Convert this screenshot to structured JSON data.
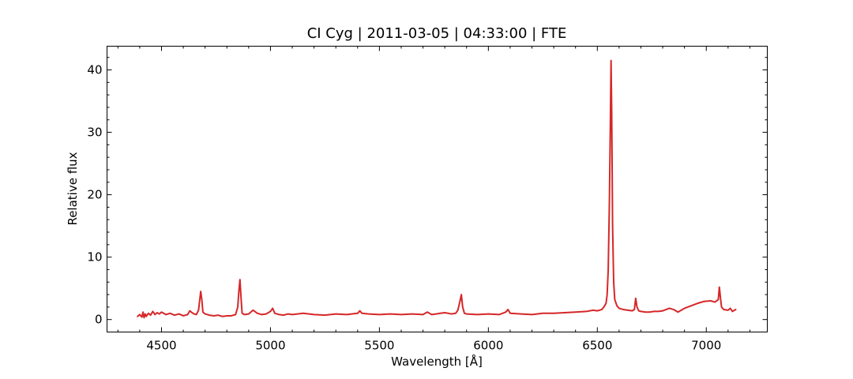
{
  "chart_data": {
    "type": "line",
    "title": "CI Cyg | 2011-03-05 | 04:33:00 | FTE",
    "xlabel": "Wavelength [Å]",
    "ylabel": "Relative flux",
    "xlim": [
      4250,
      7280
    ],
    "ylim": [
      -2,
      43.8
    ],
    "x_ticks": [
      4500,
      5000,
      5500,
      6000,
      6500,
      7000
    ],
    "y_ticks": [
      0,
      10,
      20,
      30,
      40
    ],
    "grid": false,
    "series_color": "#d62728",
    "series": [
      {
        "x": [
          4390,
          4400,
          4410,
          4415,
          4420,
          4425,
          4430,
          4440,
          4450,
          4460,
          4470,
          4480,
          4490,
          4500,
          4520,
          4540,
          4560,
          4580,
          4600,
          4620,
          4630,
          4640,
          4650,
          4660,
          4670,
          4675,
          4680,
          4685,
          4690,
          4700,
          4720,
          4740,
          4760,
          4780,
          4800,
          4820,
          4840,
          4850,
          4855,
          4860,
          4865,
          4870,
          4880,
          4900,
          4920,
          4940,
          4960,
          4980,
          5000,
          5010,
          5020,
          5040,
          5060,
          5080,
          5100,
          5150,
          5200,
          5250,
          5300,
          5350,
          5400,
          5410,
          5420,
          5450,
          5500,
          5550,
          5600,
          5650,
          5700,
          5720,
          5740,
          5760,
          5780,
          5800,
          5830,
          5850,
          5860,
          5870,
          5876,
          5882,
          5890,
          5900,
          5950,
          6000,
          6050,
          6080,
          6090,
          6100,
          6150,
          6200,
          6250,
          6300,
          6350,
          6400,
          6450,
          6480,
          6500,
          6520,
          6530,
          6540,
          6545,
          6550,
          6555,
          6560,
          6563,
          6566,
          6570,
          6575,
          6580,
          6590,
          6600,
          6620,
          6640,
          6660,
          6670,
          6676,
          6682,
          6690,
          6700,
          6720,
          6740,
          6760,
          6780,
          6800,
          6830,
          6850,
          6870,
          6900,
          6930,
          6960,
          6990,
          7020,
          7040,
          7055,
          7060,
          7065,
          7070,
          7080,
          7100,
          7110,
          7120,
          7135
        ],
        "y": [
          0.5,
          0.8,
          0.4,
          1.2,
          0.3,
          0.9,
          0.5,
          1.0,
          0.7,
          1.3,
          0.8,
          1.1,
          0.9,
          1.2,
          0.8,
          1.0,
          0.7,
          0.9,
          0.6,
          0.8,
          1.4,
          1.1,
          0.9,
          0.8,
          1.5,
          3.0,
          4.5,
          3.2,
          1.2,
          0.9,
          0.7,
          0.6,
          0.7,
          0.5,
          0.6,
          0.6,
          0.8,
          2.0,
          4.5,
          6.4,
          3.5,
          1.0,
          0.8,
          0.9,
          1.5,
          1.0,
          0.8,
          0.9,
          1.3,
          1.8,
          1.0,
          0.8,
          0.7,
          0.9,
          0.8,
          1.0,
          0.8,
          0.7,
          0.9,
          0.8,
          1.0,
          1.4,
          1.0,
          0.9,
          0.8,
          0.9,
          0.8,
          0.9,
          0.8,
          1.2,
          0.8,
          0.9,
          1.0,
          1.1,
          0.9,
          1.0,
          1.5,
          3.0,
          4.0,
          2.0,
          1.0,
          0.9,
          0.8,
          0.9,
          0.8,
          1.2,
          1.6,
          1.0,
          0.9,
          0.8,
          1.0,
          1.0,
          1.1,
          1.2,
          1.3,
          1.5,
          1.4,
          1.6,
          2.0,
          2.6,
          4.0,
          8.0,
          18.0,
          32.0,
          41.5,
          33.0,
          15.0,
          6.0,
          3.2,
          2.2,
          1.8,
          1.6,
          1.5,
          1.4,
          1.6,
          3.4,
          2.0,
          1.4,
          1.3,
          1.2,
          1.2,
          1.3,
          1.3,
          1.4,
          1.8,
          1.6,
          1.2,
          1.8,
          2.2,
          2.6,
          2.9,
          3.0,
          2.8,
          3.2,
          5.2,
          3.5,
          2.0,
          1.6,
          1.5,
          1.8,
          1.3,
          1.6
        ]
      }
    ]
  }
}
